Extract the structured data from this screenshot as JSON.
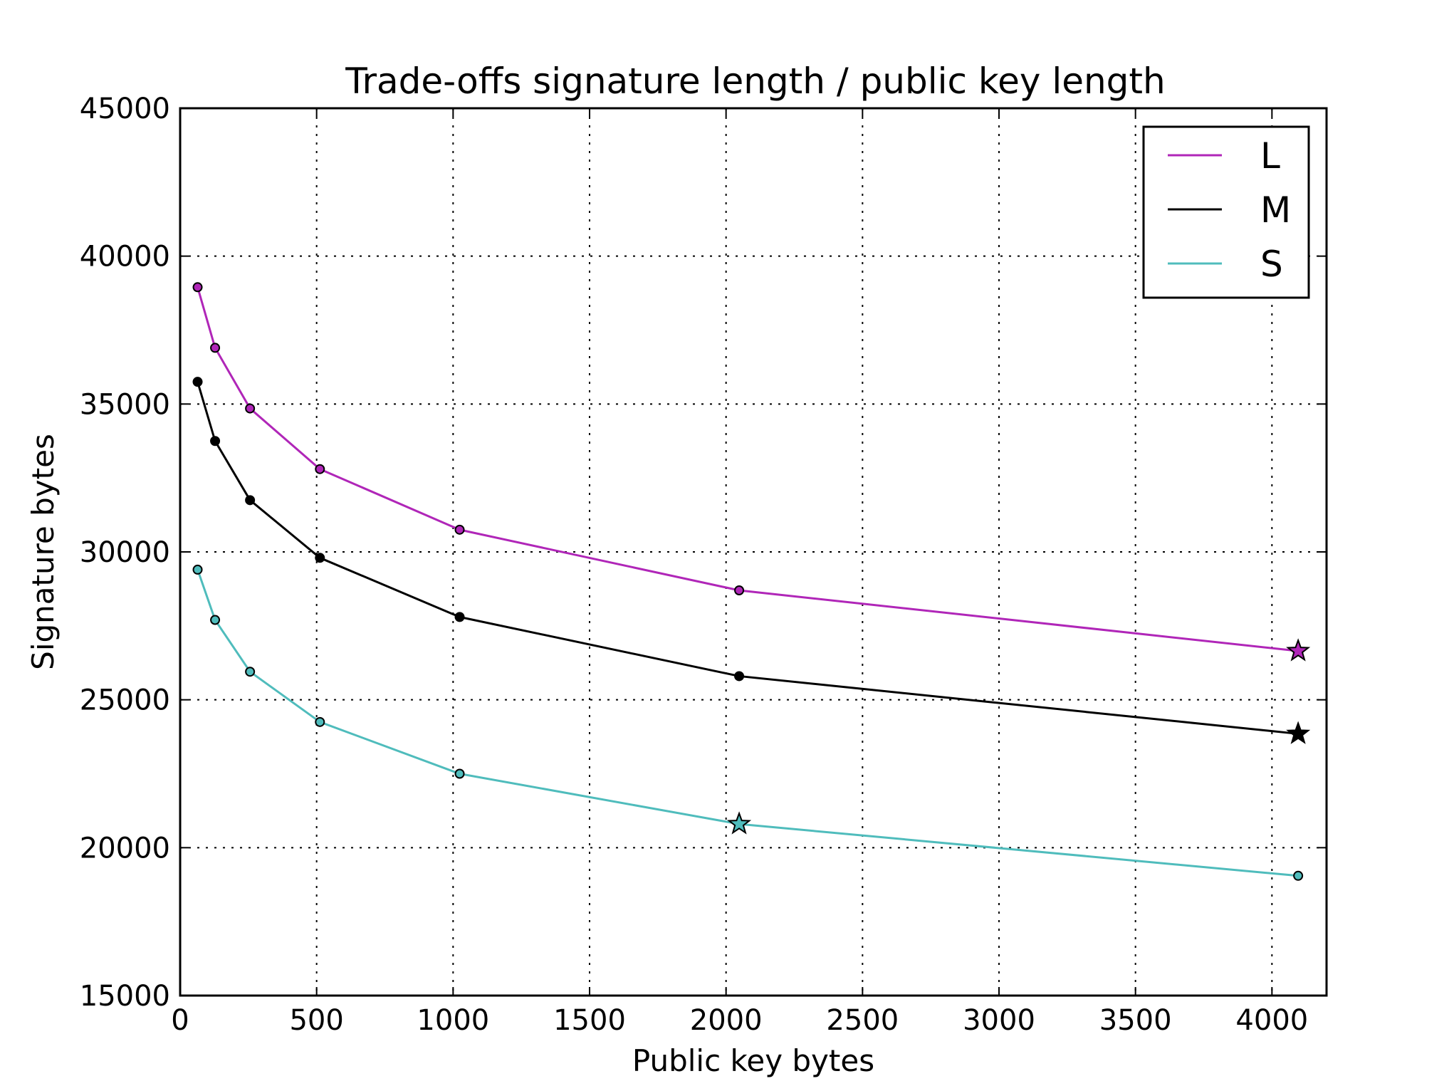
{
  "chart_data": {
    "type": "line",
    "title": "Trade-offs signature length / public key length",
    "xlabel": "Public key bytes",
    "ylabel": "Signature bytes",
    "xlim": [
      0,
      4200
    ],
    "ylim": [
      15000,
      45000
    ],
    "xticks": [
      0,
      500,
      1000,
      1500,
      2000,
      2500,
      3000,
      3500,
      4000
    ],
    "yticks": [
      15000,
      20000,
      25000,
      30000,
      35000,
      40000,
      45000
    ],
    "grid": true,
    "legend_position": "top-right",
    "series": [
      {
        "name": "L",
        "color": "#b026b8",
        "x": [
          64,
          128,
          256,
          512,
          1024,
          2048,
          4096
        ],
        "y": [
          38950,
          36900,
          34850,
          32800,
          30750,
          28700,
          26650
        ],
        "star_index": 6
      },
      {
        "name": "M",
        "color": "#000000",
        "x": [
          64,
          128,
          256,
          512,
          1024,
          2048,
          4096
        ],
        "y": [
          35750,
          33750,
          31750,
          29800,
          27800,
          25800,
          23850
        ],
        "star_index": 6
      },
      {
        "name": "S",
        "color": "#4fbcbc",
        "x": [
          64,
          128,
          256,
          512,
          1024,
          2048,
          4096
        ],
        "y": [
          29400,
          27700,
          25950,
          24250,
          22500,
          20800,
          19050
        ],
        "star_index": 5
      }
    ]
  }
}
